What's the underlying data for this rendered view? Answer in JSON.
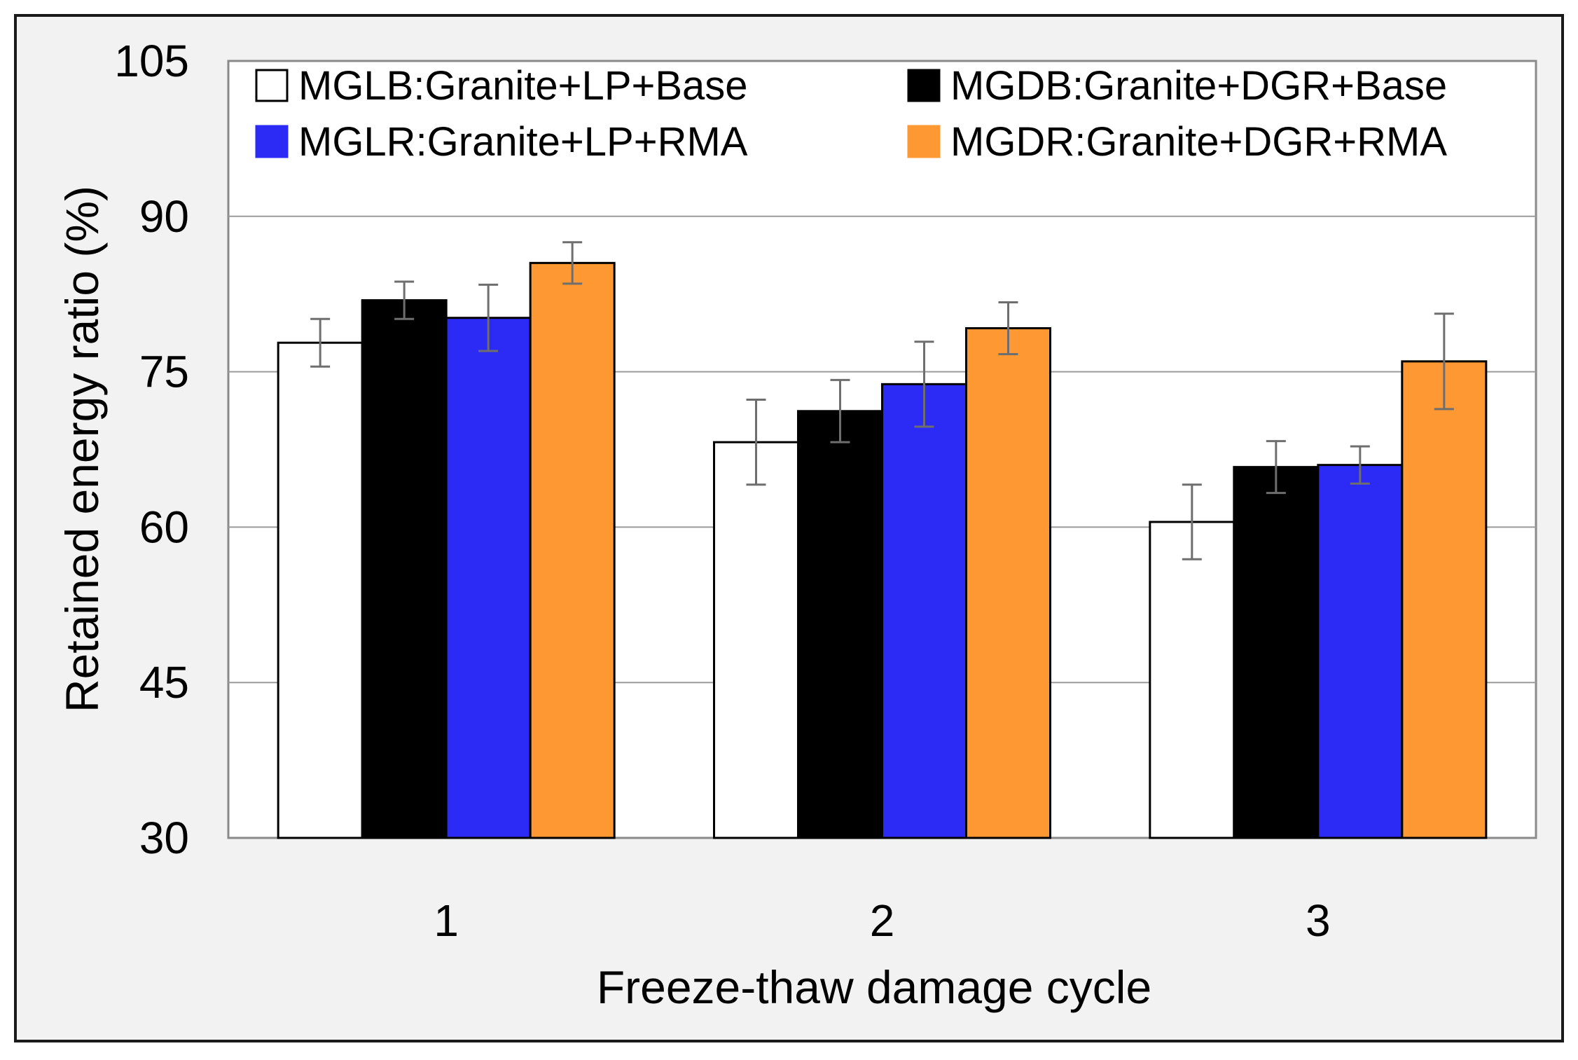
{
  "chart_data": {
    "type": "bar",
    "title": "",
    "xlabel": "Freeze-thaw damage cycle",
    "ylabel": "Retained energy ratio (%)",
    "categories": [
      "1",
      "2",
      "3"
    ],
    "ylim": [
      30,
      105
    ],
    "yticks": [
      "30",
      "45",
      "60",
      "75",
      "90",
      "105"
    ],
    "grid": true,
    "legend_position": "top",
    "series": [
      {
        "name": "MGLB:Granite+LP+Base",
        "color": "#ffffff",
        "values": [
          77.8,
          68.2,
          60.5
        ],
        "errors": [
          2.3,
          4.1,
          3.6
        ]
      },
      {
        "name": "MGDB:Granite+DGR+Base",
        "color": "#000000",
        "values": [
          81.9,
          71.2,
          65.8
        ],
        "errors": [
          1.8,
          3.0,
          2.5
        ]
      },
      {
        "name": "MGLR:Granite+LP+RMA",
        "color": "#2b2bf5",
        "values": [
          80.2,
          73.8,
          66.0
        ],
        "errors": [
          3.2,
          4.1,
          1.8
        ]
      },
      {
        "name": "MGDR:Granite+DGR+RMA",
        "color": "#fd9833",
        "values": [
          85.5,
          79.2,
          76.0
        ],
        "errors": [
          2.0,
          2.5,
          4.6
        ]
      }
    ]
  }
}
